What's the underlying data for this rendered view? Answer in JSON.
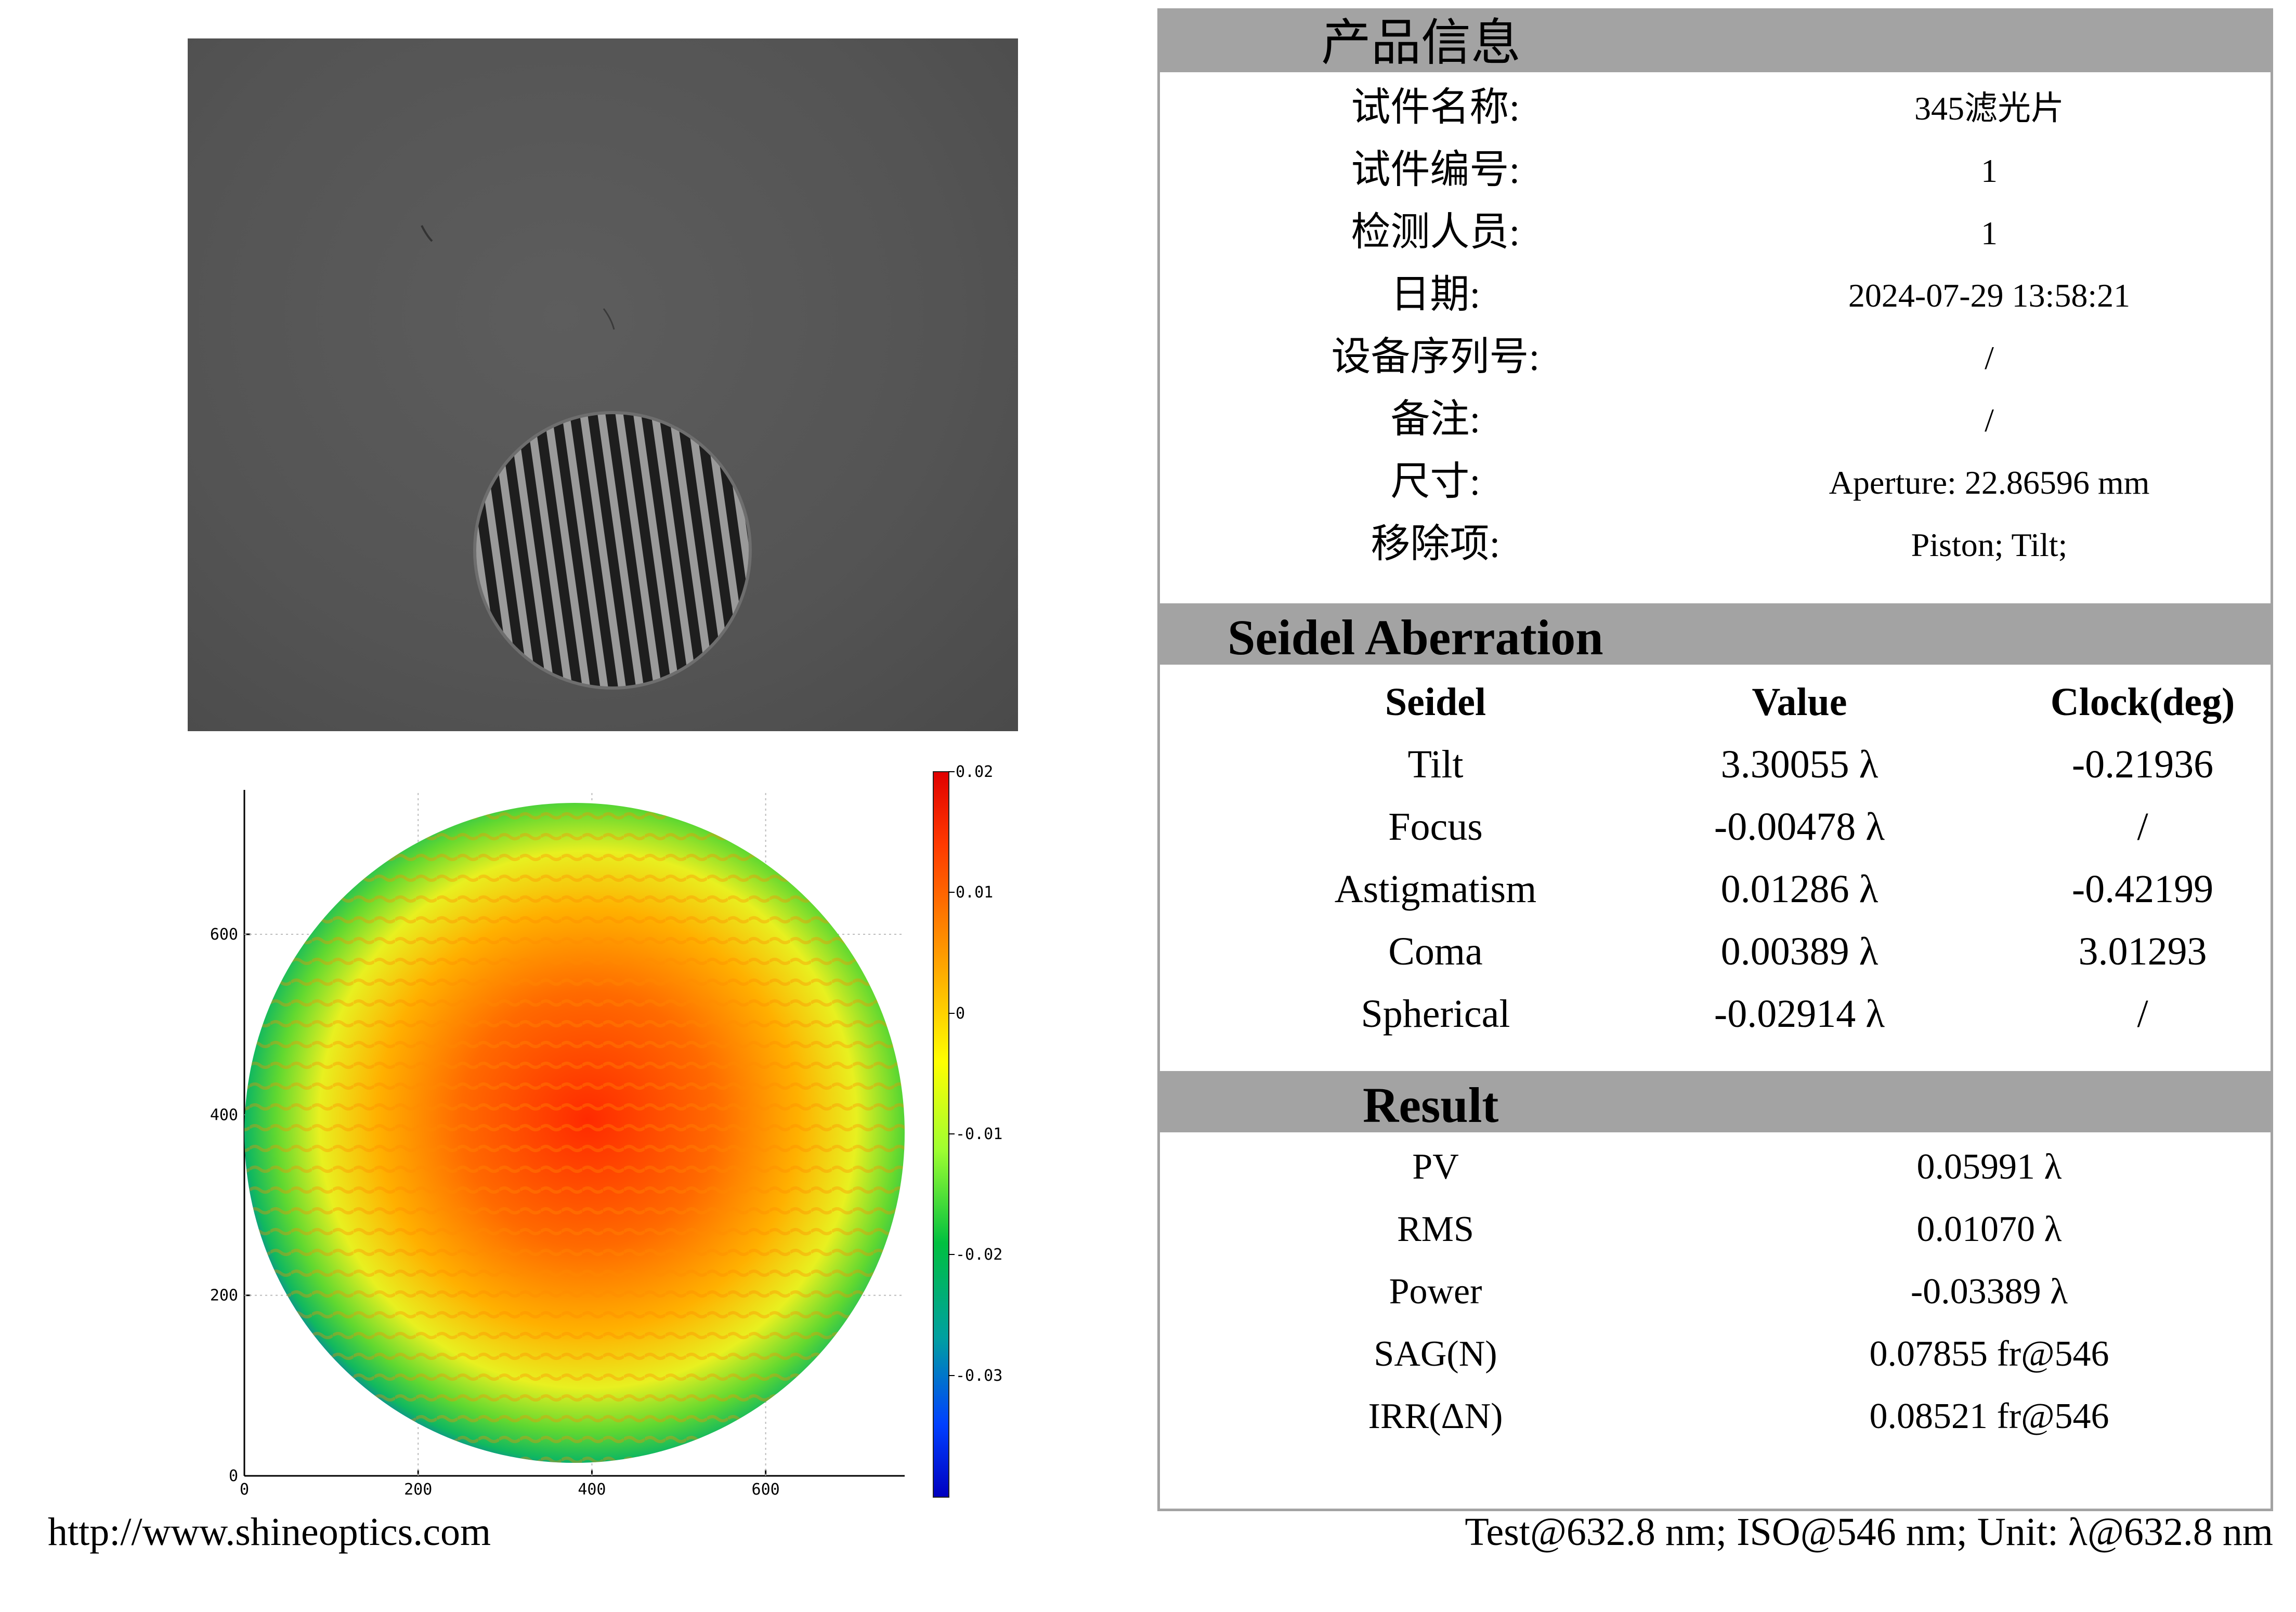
{
  "product_info": {
    "title": "产品信息",
    "rows": [
      {
        "label": "试件名称:",
        "value": "345滤光片"
      },
      {
        "label": "试件编号:",
        "value": "1"
      },
      {
        "label": "检测人员:",
        "value": "1"
      },
      {
        "label": "日期:",
        "value": "2024-07-29 13:58:21"
      },
      {
        "label": "设备序列号:",
        "value": "/"
      },
      {
        "label": "备注:",
        "value": "/"
      },
      {
        "label": "尺寸:",
        "value": "Aperture: 22.86596 mm"
      },
      {
        "label": "移除项:",
        "value": "Piston; Tilt;"
      }
    ]
  },
  "seidel": {
    "title": "Seidel Aberration",
    "headers": [
      "Seidel",
      "Value",
      "Clock(deg)"
    ],
    "rows": [
      [
        "Tilt",
        "3.30055 λ",
        "-0.21936"
      ],
      [
        "Focus",
        "-0.00478 λ",
        "/"
      ],
      [
        "Astigmatism",
        "0.01286 λ",
        "-0.42199"
      ],
      [
        "Coma",
        "0.00389 λ",
        "3.01293"
      ],
      [
        "Spherical",
        "-0.02914 λ",
        "/"
      ]
    ]
  },
  "result": {
    "title": "Result",
    "rows": [
      {
        "label": "PV",
        "value": "0.05991 λ"
      },
      {
        "label": "RMS",
        "value": "0.01070 λ"
      },
      {
        "label": "Power",
        "value": "-0.03389 λ"
      },
      {
        "label": "SAG(N)",
        "value": "0.07855 fr@546"
      },
      {
        "label": "IRR(ΔN)",
        "value": "0.08521 fr@546"
      }
    ]
  },
  "footer": {
    "url": "http://www.shineoptics.com",
    "units": "Test@632.8 nm; ISO@546 nm; Unit: λ@632.8 nm"
  },
  "chart_data": {
    "type": "heatmap",
    "xlim": [
      0,
      760
    ],
    "ylim": [
      0,
      760
    ],
    "x_ticks": [
      "0",
      "200",
      "400",
      "600"
    ],
    "y_ticks": [
      "0",
      "200",
      "400",
      "600"
    ],
    "colorbar_ticks": [
      "0.02",
      "0.01",
      "0",
      "-0.01",
      "-0.02",
      "-0.03"
    ],
    "colorbar_range": [
      -0.04,
      0.02
    ]
  }
}
